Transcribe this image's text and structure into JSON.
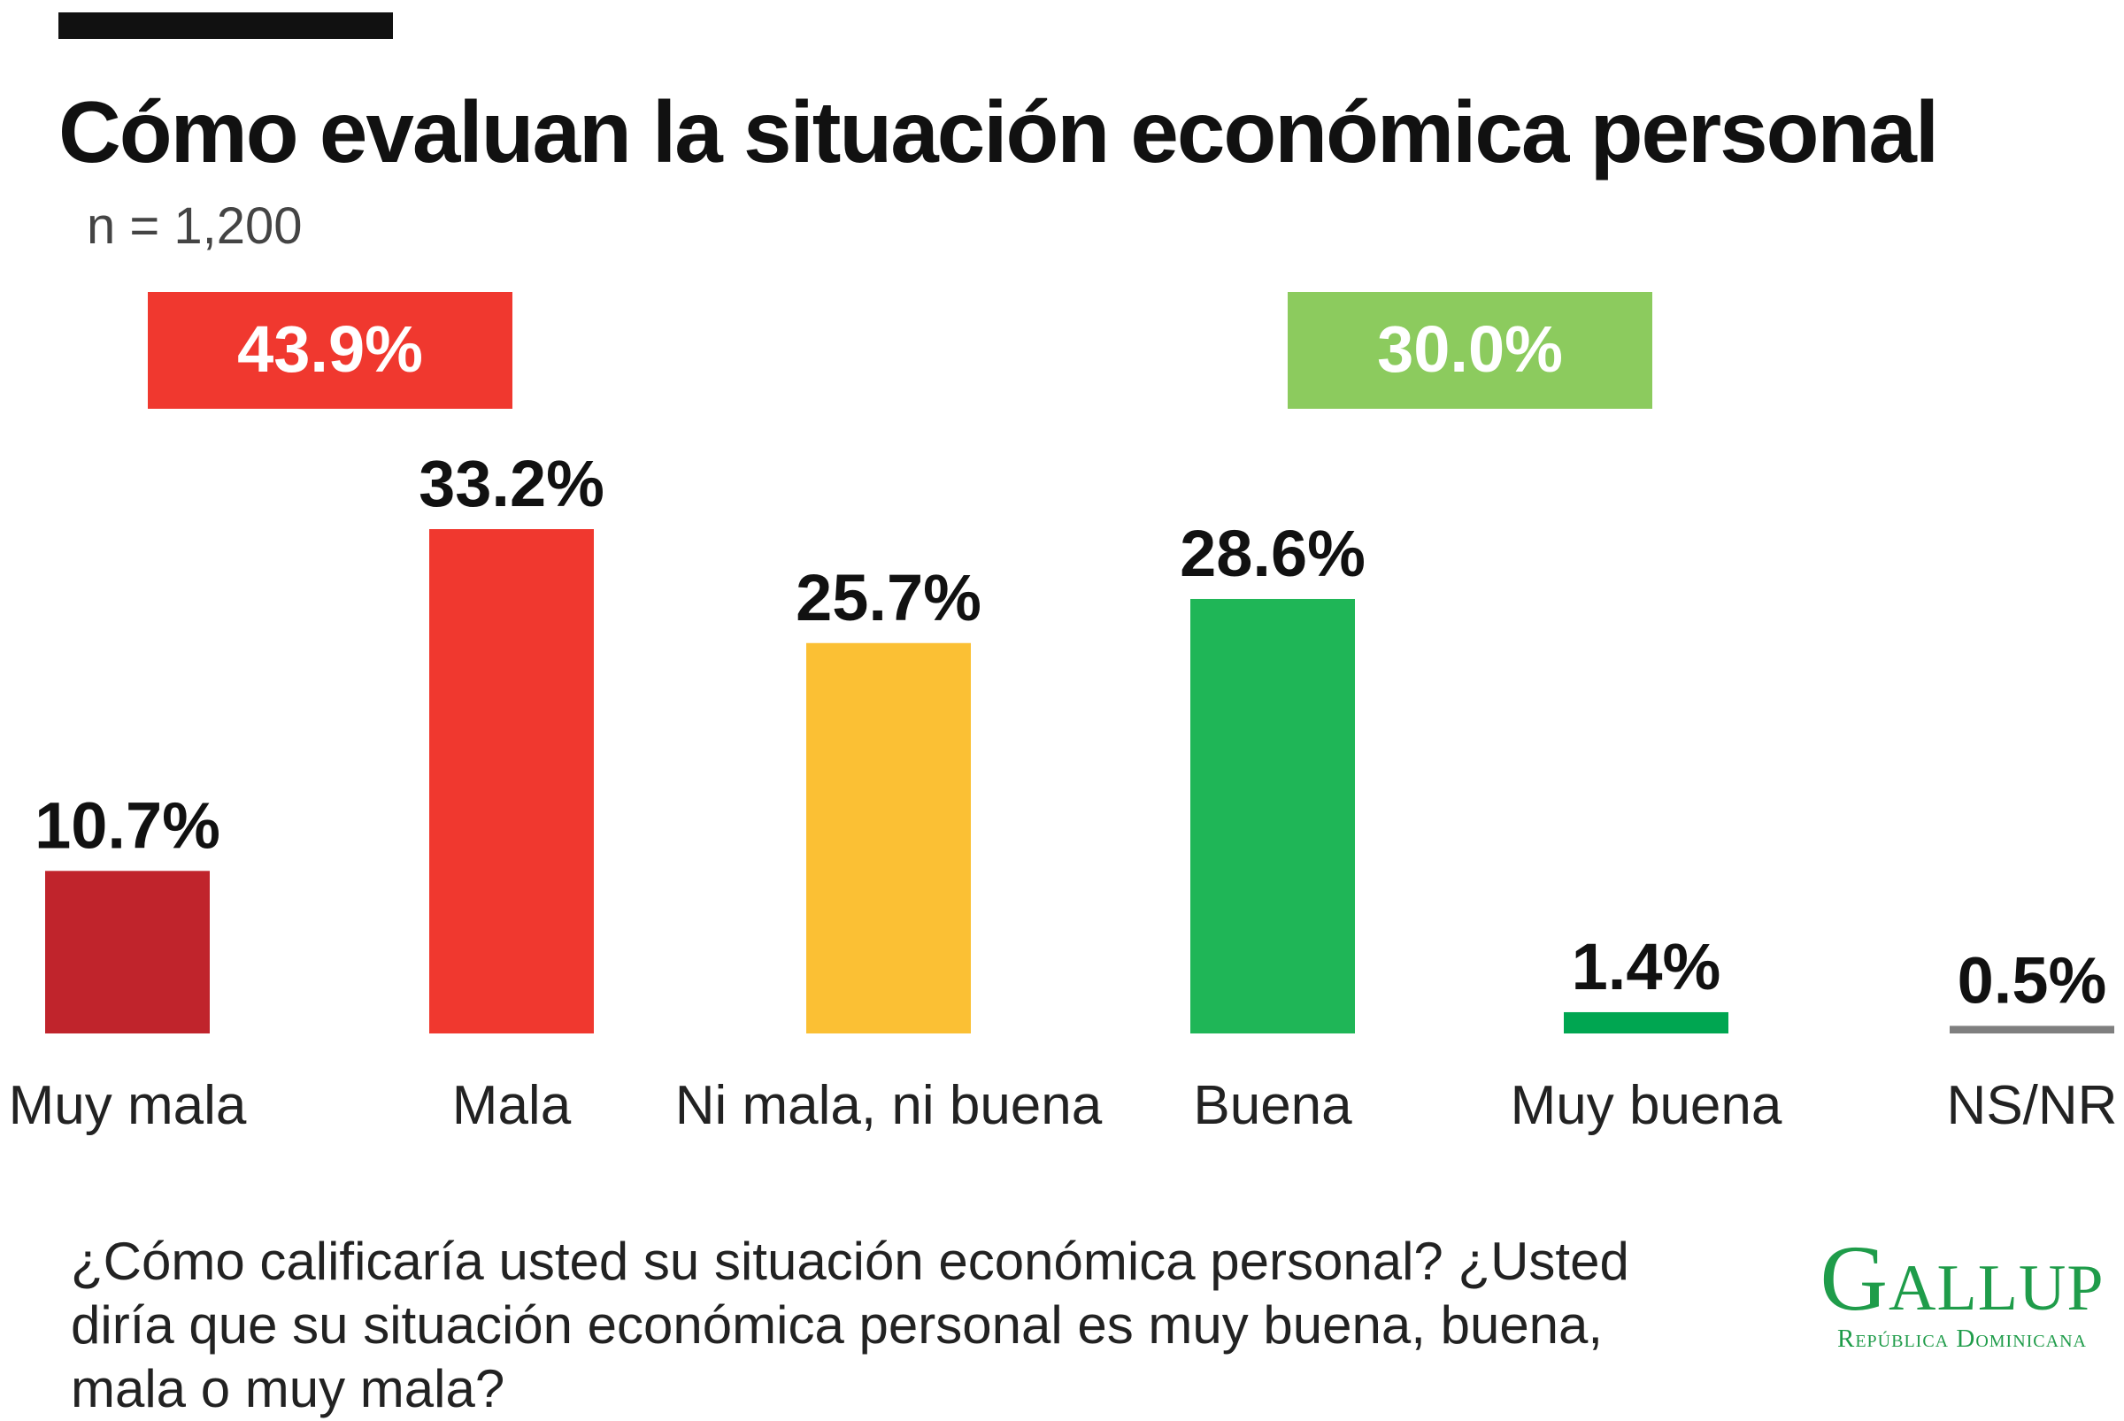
{
  "title": "Cómo evaluan la situación económica personal",
  "sample": "n = 1,200",
  "question": "¿Cómo calificaría usted su situación económica personal? ¿Usted diría que su situación económica personal es muy buena, buena, mala o muy mala?",
  "logo": {
    "main": "Gallup",
    "sub": "República Dominicana"
  },
  "colors": {
    "muy_mala": "#c0242c",
    "mala": "#f0382f",
    "ni_mala_ni_buena": "#fbc034",
    "buena": "#1fb657",
    "muy_buena": "#00a651",
    "ns_nr": "#7f7f7f",
    "neg_total": "#f0382f",
    "pos_total": "#8ccb5e"
  },
  "chart_data": {
    "type": "bar",
    "categories": [
      "Muy mala",
      "Mala",
      "Ni mala, ni buena",
      "Buena",
      "Muy buena",
      "NS/NR"
    ],
    "values": [
      10.7,
      33.2,
      25.7,
      28.6,
      1.4,
      0.5
    ],
    "labels": [
      "10.7%",
      "33.2%",
      "25.7%",
      "28.6%",
      "1.4%",
      "0.5%"
    ],
    "ylim": [
      0,
      33.2
    ],
    "grid": false,
    "legend": "none",
    "group_totals": [
      {
        "label": "43.9%",
        "value": 43.9,
        "categories": [
          "Muy mala",
          "Mala"
        ],
        "color": "#f0382f"
      },
      {
        "label": "30.0%",
        "value": 30.0,
        "categories": [
          "Buena",
          "Muy buena"
        ],
        "color": "#8ccb5e"
      }
    ]
  }
}
